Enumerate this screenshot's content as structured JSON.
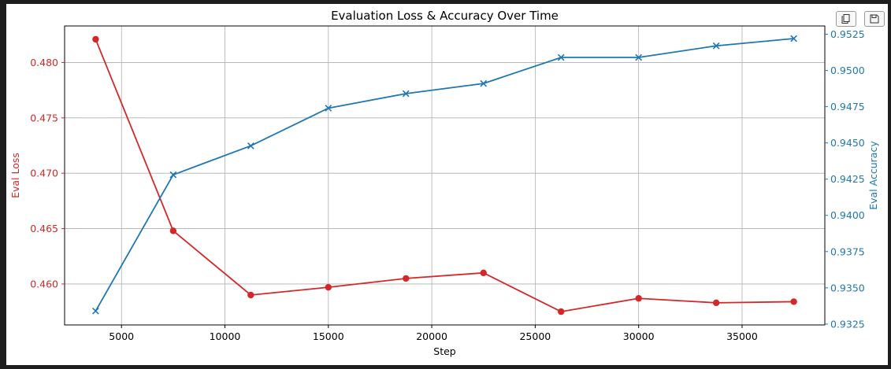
{
  "toolbar": {
    "copy_icon": "copy-icon",
    "save_icon": "save-icon"
  },
  "colors": {
    "loss": "#d62728",
    "accuracy": "#1f77b4",
    "grid": "#b0b0b0"
  },
  "chart_data": {
    "type": "line",
    "title": "Evaluation Loss & Accuracy Over Time",
    "xlabel": "Step",
    "ylabel_left": "Eval Loss",
    "ylabel_right": "Eval Accuracy",
    "grid": true,
    "x": [
      3750,
      7500,
      11250,
      15000,
      18750,
      22500,
      26250,
      30000,
      33750,
      37500
    ],
    "x_ticks": [
      5000,
      10000,
      15000,
      20000,
      25000,
      30000,
      35000
    ],
    "x_tick_labels": [
      "5000",
      "10000",
      "15000",
      "20000",
      "25000",
      "30000",
      "35000"
    ],
    "xlim": [
      2250,
      39000
    ],
    "series": [
      {
        "axis": "left",
        "marker": "circle",
        "values": [
          0.4821,
          0.4648,
          0.459,
          0.4597,
          0.4605,
          0.461,
          0.4575,
          0.4587,
          0.4583,
          0.4584
        ]
      },
      {
        "axis": "right",
        "marker": "x",
        "values": [
          0.9334,
          0.9428,
          0.9448,
          0.9474,
          0.9484,
          0.9491,
          0.9509,
          0.9509,
          0.9517,
          0.9522
        ]
      }
    ],
    "y_left": {
      "lim": [
        0.4563,
        0.4833
      ],
      "ticks": [
        0.46,
        0.465,
        0.47,
        0.475,
        0.48
      ],
      "tick_labels": [
        "0.460",
        "0.465",
        "0.470",
        "0.475",
        "0.480"
      ]
    },
    "y_right": {
      "lim": [
        0.93244,
        0.95307
      ],
      "ticks": [
        0.9325,
        0.935,
        0.9375,
        0.94,
        0.9425,
        0.945,
        0.9475,
        0.95,
        0.9525
      ],
      "tick_labels": [
        "0.9325",
        "0.9350",
        "0.9375",
        "0.9400",
        "0.9425",
        "0.9450",
        "0.9475",
        "0.9500",
        "0.9525"
      ]
    }
  }
}
